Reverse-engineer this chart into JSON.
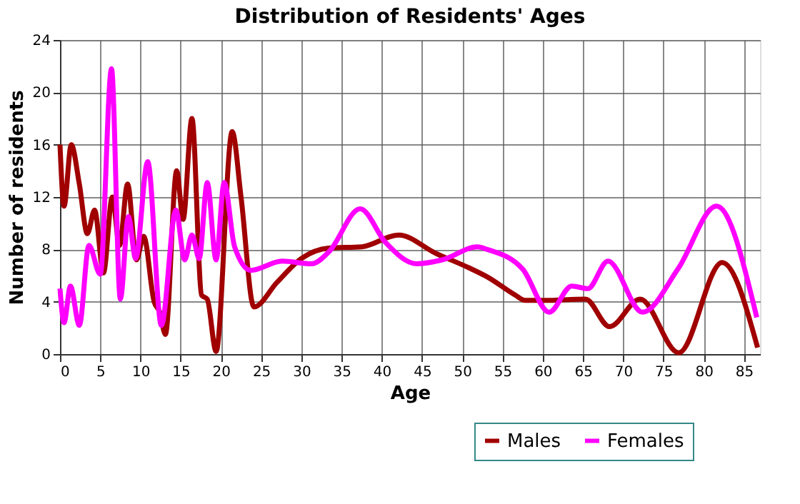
{
  "chart_data": {
    "type": "line",
    "title": "Distribution of Residents' Ages",
    "xlabel": "Age",
    "ylabel": "Number of residents",
    "xlim": [
      0,
      87
    ],
    "xticks": [
      0,
      5,
      10,
      15,
      20,
      25,
      30,
      35,
      40,
      45,
      50,
      55,
      60,
      65,
      70,
      75,
      80,
      85
    ],
    "ylim": [
      0,
      24
    ],
    "yticks": [
      0,
      4,
      8,
      12,
      16,
      20,
      24
    ],
    "grid": true,
    "legend": "bottom right",
    "marker": "none",
    "line_style": "solid",
    "series": [
      {
        "name": "Males",
        "color": "#a00000",
        "x": [
          0,
          0.5,
          1.4,
          2.4,
          3.4,
          4.3,
          5.4,
          6.5,
          7.4,
          8.4,
          9.5,
          10.4,
          11.7,
          12.4,
          13.1,
          14.5,
          15.3,
          16.4,
          17.6,
          18.3,
          19.4,
          21.4,
          22.5,
          24.1,
          27,
          30,
          33.4,
          37.5,
          42.1,
          46.7,
          50.8,
          53.1,
          56.6,
          57.8,
          60,
          65.3,
          68.3,
          72.1,
          76.9,
          82.3,
          86.7
        ],
        "values": [
          16,
          11.3,
          16,
          13,
          9.2,
          11,
          6.2,
          12,
          8.3,
          13,
          7.2,
          9,
          4,
          3.2,
          1.5,
          14,
          10.3,
          18,
          4.5,
          4.2,
          0.2,
          17,
          12,
          3.6,
          5.5,
          7.3,
          8.1,
          8.2,
          9.1,
          7.7,
          6.6,
          5.9,
          4.5,
          4.1,
          4.1,
          4.2,
          2.1,
          4.2,
          0.1,
          7,
          0.5
        ]
      },
      {
        "name": "Females",
        "color": "#ff00ff",
        "x": [
          0,
          0.5,
          1.3,
          2.4,
          3.6,
          5,
          6.4,
          7.5,
          8.5,
          9.4,
          10.9,
          12.6,
          14.4,
          15.5,
          16.4,
          17.3,
          18.3,
          19.4,
          20.4,
          21.7,
          23.7,
          27.6,
          31.3,
          33.4,
          37.3,
          40.5,
          44.3,
          47.5,
          51.9,
          53.1,
          57.5,
          60.8,
          63.6,
          65.6,
          68.1,
          72.4,
          76.8,
          81.6,
          86.6
        ],
        "values": [
          5,
          2.4,
          5.2,
          2.2,
          8.3,
          6.1,
          21.8,
          4.2,
          10.5,
          7.3,
          14.7,
          2.2,
          11,
          7.2,
          9.1,
          7.3,
          13.1,
          7.2,
          13.1,
          8.2,
          6.4,
          7.1,
          6.9,
          7.8,
          11.1,
          8.5,
          6.9,
          7.2,
          8.2,
          8,
          6.5,
          3.2,
          5.2,
          5,
          7.1,
          3.2,
          6.5,
          11.3,
          2.8
        ]
      }
    ]
  }
}
